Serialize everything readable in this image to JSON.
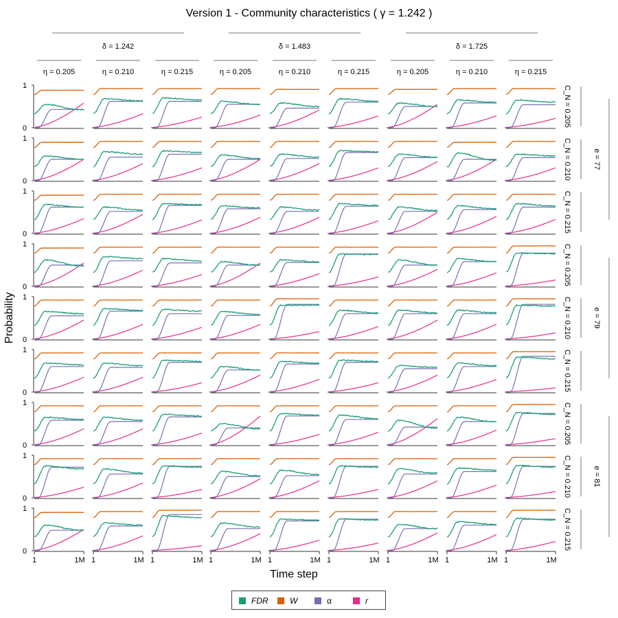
{
  "title": "Version 1 - Community characteristics ( γ = 1.242 )",
  "y_axis_label": "Probability",
  "x_axis_label": "Time step",
  "x_tick_labels": [
    "1",
    "1M"
  ],
  "y_tick_labels": [
    "0",
    "1"
  ],
  "colors": {
    "FDR": "#1b9e77",
    "W": "#d95f02",
    "alpha": "#7570b3",
    "r": "#e7298a"
  },
  "legend": [
    {
      "key": "FDR",
      "label": "FDR"
    },
    {
      "key": "W",
      "label": "W"
    },
    {
      "key": "alpha",
      "label": "α"
    },
    {
      "key": "r",
      "label": "r"
    }
  ],
  "column_groups": [
    {
      "label": "δ = 1.242",
      "subs": [
        "η = 0.205",
        "η = 0.210",
        "η = 0.215"
      ]
    },
    {
      "label": "δ = 1.483",
      "subs": [
        "η = 0.205",
        "η = 0.210",
        "η = 0.215"
      ]
    },
    {
      "label": "δ = 1.725",
      "subs": [
        "η = 0.205",
        "η = 0.210",
        "η = 0.215"
      ]
    }
  ],
  "row_groups": [
    {
      "label": "e = 77",
      "subs": [
        "C_N = 0.205",
        "C_N = 0.210",
        "C_N = 0.215"
      ]
    },
    {
      "label": "e = 79",
      "subs": [
        "C_N = 0.205",
        "C_N = 0.210",
        "C_N = 0.215"
      ]
    },
    {
      "label": "e = 81",
      "subs": [
        "C_N = 0.205",
        "C_N = 0.210",
        "C_N = 0.215"
      ]
    }
  ],
  "chart_data": {
    "type": "line",
    "title": "Version 1 - Community characteristics ( γ = 1.242 )",
    "xlabel": "Time step",
    "ylabel": "Probability",
    "xlim": [
      "1",
      "1M"
    ],
    "ylim": [
      0,
      1
    ],
    "x": [
      0,
      0.05,
      0.1,
      0.15,
      0.2,
      0.25,
      0.3,
      0.35,
      0.4,
      0.5,
      0.6,
      0.7,
      0.8,
      0.9,
      1.0
    ],
    "x_note": "x expressed as fraction of the log time axis from 1 to 1M",
    "panels": [
      {
        "row": 0,
        "col": 0,
        "W": 0.88,
        "FDR_peak": 0.55,
        "FDR_end": 0.42,
        "alpha_end": 0.43,
        "r_end": 0.58
      },
      {
        "row": 0,
        "col": 1,
        "W": 0.92,
        "FDR_peak": 0.68,
        "FDR_end": 0.63,
        "alpha_end": 0.62,
        "r_end": 0.33
      },
      {
        "row": 0,
        "col": 2,
        "W": 0.92,
        "FDR_peak": 0.7,
        "FDR_end": 0.65,
        "alpha_end": 0.62,
        "r_end": 0.25
      },
      {
        "row": 0,
        "col": 3,
        "W": 0.92,
        "FDR_peak": 0.62,
        "FDR_end": 0.55,
        "alpha_end": 0.55,
        "r_end": 0.3
      },
      {
        "row": 0,
        "col": 4,
        "W": 0.9,
        "FDR_peak": 0.58,
        "FDR_end": 0.5,
        "alpha_end": 0.46,
        "r_end": 0.42
      },
      {
        "row": 0,
        "col": 5,
        "W": 0.92,
        "FDR_peak": 0.68,
        "FDR_end": 0.62,
        "alpha_end": 0.6,
        "r_end": 0.28
      },
      {
        "row": 0,
        "col": 6,
        "W": 0.9,
        "FDR_peak": 0.58,
        "FDR_end": 0.5,
        "alpha_end": 0.5,
        "r_end": 0.55
      },
      {
        "row": 0,
        "col": 7,
        "W": 0.92,
        "FDR_peak": 0.65,
        "FDR_end": 0.6,
        "alpha_end": 0.58,
        "r_end": 0.28
      },
      {
        "row": 0,
        "col": 8,
        "W": 0.92,
        "FDR_peak": 0.65,
        "FDR_end": 0.6,
        "alpha_end": 0.54,
        "r_end": 0.22
      },
      {
        "row": 1,
        "col": 0,
        "W": 0.9,
        "FDR_peak": 0.58,
        "FDR_end": 0.5,
        "alpha_end": 0.5,
        "r_end": 0.5
      },
      {
        "row": 1,
        "col": 1,
        "W": 0.92,
        "FDR_peak": 0.68,
        "FDR_end": 0.62,
        "alpha_end": 0.55,
        "r_end": 0.4
      },
      {
        "row": 1,
        "col": 2,
        "W": 0.92,
        "FDR_peak": 0.7,
        "FDR_end": 0.66,
        "alpha_end": 0.62,
        "r_end": 0.3
      },
      {
        "row": 1,
        "col": 3,
        "W": 0.92,
        "FDR_peak": 0.6,
        "FDR_end": 0.52,
        "alpha_end": 0.5,
        "r_end": 0.5
      },
      {
        "row": 1,
        "col": 4,
        "W": 0.92,
        "FDR_peak": 0.62,
        "FDR_end": 0.55,
        "alpha_end": 0.52,
        "r_end": 0.4
      },
      {
        "row": 1,
        "col": 5,
        "W": 0.92,
        "FDR_peak": 0.7,
        "FDR_end": 0.68,
        "alpha_end": 0.66,
        "r_end": 0.3
      },
      {
        "row": 1,
        "col": 6,
        "W": 0.92,
        "FDR_peak": 0.62,
        "FDR_end": 0.55,
        "alpha_end": 0.54,
        "r_end": 0.45
      },
      {
        "row": 1,
        "col": 7,
        "W": 0.9,
        "FDR_peak": 0.65,
        "FDR_end": 0.48,
        "alpha_end": 0.5,
        "r_end": 0.5
      },
      {
        "row": 1,
        "col": 8,
        "W": 0.92,
        "FDR_peak": 0.62,
        "FDR_end": 0.58,
        "alpha_end": 0.54,
        "r_end": 0.3
      },
      {
        "row": 2,
        "col": 0,
        "W": 0.9,
        "FDR_peak": 0.68,
        "FDR_end": 0.62,
        "alpha_end": 0.62,
        "r_end": 0.35
      },
      {
        "row": 2,
        "col": 1,
        "W": 0.92,
        "FDR_peak": 0.62,
        "FDR_end": 0.55,
        "alpha_end": 0.52,
        "r_end": 0.45
      },
      {
        "row": 2,
        "col": 2,
        "W": 0.92,
        "FDR_peak": 0.7,
        "FDR_end": 0.68,
        "alpha_end": 0.66,
        "r_end": 0.32
      },
      {
        "row": 2,
        "col": 3,
        "W": 0.92,
        "FDR_peak": 0.65,
        "FDR_end": 0.6,
        "alpha_end": 0.58,
        "r_end": 0.38
      },
      {
        "row": 2,
        "col": 4,
        "W": 0.92,
        "FDR_peak": 0.62,
        "FDR_end": 0.55,
        "alpha_end": 0.52,
        "r_end": 0.38
      },
      {
        "row": 2,
        "col": 5,
        "W": 0.92,
        "FDR_peak": 0.7,
        "FDR_end": 0.66,
        "alpha_end": 0.64,
        "r_end": 0.3
      },
      {
        "row": 2,
        "col": 6,
        "W": 0.92,
        "FDR_peak": 0.62,
        "FDR_end": 0.54,
        "alpha_end": 0.52,
        "r_end": 0.5
      },
      {
        "row": 2,
        "col": 7,
        "W": 0.92,
        "FDR_peak": 0.65,
        "FDR_end": 0.58,
        "alpha_end": 0.56,
        "r_end": 0.4
      },
      {
        "row": 2,
        "col": 8,
        "W": 0.92,
        "FDR_peak": 0.7,
        "FDR_end": 0.65,
        "alpha_end": 0.62,
        "r_end": 0.33
      },
      {
        "row": 3,
        "col": 0,
        "W": 0.9,
        "FDR_peak": 0.62,
        "FDR_end": 0.48,
        "alpha_end": 0.5,
        "r_end": 0.55
      },
      {
        "row": 3,
        "col": 1,
        "W": 0.92,
        "FDR_peak": 0.7,
        "FDR_end": 0.65,
        "alpha_end": 0.6,
        "r_end": 0.38
      },
      {
        "row": 3,
        "col": 2,
        "W": 0.92,
        "FDR_peak": 0.65,
        "FDR_end": 0.6,
        "alpha_end": 0.55,
        "r_end": 0.28
      },
      {
        "row": 3,
        "col": 3,
        "W": 0.92,
        "FDR_peak": 0.58,
        "FDR_end": 0.5,
        "alpha_end": 0.5,
        "r_end": 0.55
      },
      {
        "row": 3,
        "col": 4,
        "W": 0.92,
        "FDR_peak": 0.62,
        "FDR_end": 0.58,
        "alpha_end": 0.56,
        "r_end": 0.3
      },
      {
        "row": 3,
        "col": 5,
        "W": 0.92,
        "FDR_peak": 0.76,
        "FDR_end": 0.75,
        "alpha_end": 0.76,
        "r_end": 0.22
      },
      {
        "row": 3,
        "col": 6,
        "W": 0.92,
        "FDR_peak": 0.62,
        "FDR_end": 0.5,
        "alpha_end": 0.5,
        "r_end": 0.4
      },
      {
        "row": 3,
        "col": 7,
        "W": 0.92,
        "FDR_peak": 0.65,
        "FDR_end": 0.58,
        "alpha_end": 0.58,
        "r_end": 0.32
      },
      {
        "row": 3,
        "col": 8,
        "W": 0.95,
        "FDR_peak": 0.78,
        "FDR_end": 0.77,
        "alpha_end": 0.78,
        "r_end": 0.15
      },
      {
        "row": 4,
        "col": 0,
        "W": 0.92,
        "FDR_peak": 0.65,
        "FDR_end": 0.6,
        "alpha_end": 0.55,
        "r_end": 0.45
      },
      {
        "row": 4,
        "col": 1,
        "W": 0.92,
        "FDR_peak": 0.72,
        "FDR_end": 0.68,
        "alpha_end": 0.66,
        "r_end": 0.35
      },
      {
        "row": 4,
        "col": 2,
        "W": 0.92,
        "FDR_peak": 0.7,
        "FDR_end": 0.66,
        "alpha_end": 0.6,
        "r_end": 0.28
      },
      {
        "row": 4,
        "col": 3,
        "W": 0.92,
        "FDR_peak": 0.65,
        "FDR_end": 0.58,
        "alpha_end": 0.56,
        "r_end": 0.35
      },
      {
        "row": 4,
        "col": 4,
        "W": 0.95,
        "FDR_peak": 0.8,
        "FDR_end": 0.8,
        "alpha_end": 0.82,
        "r_end": 0.18
      },
      {
        "row": 4,
        "col": 5,
        "W": 0.92,
        "FDR_peak": 0.68,
        "FDR_end": 0.62,
        "alpha_end": 0.6,
        "r_end": 0.3
      },
      {
        "row": 4,
        "col": 6,
        "W": 0.92,
        "FDR_peak": 0.68,
        "FDR_end": 0.62,
        "alpha_end": 0.6,
        "r_end": 0.45
      },
      {
        "row": 4,
        "col": 7,
        "W": 0.92,
        "FDR_peak": 0.68,
        "FDR_end": 0.62,
        "alpha_end": 0.6,
        "r_end": 0.35
      },
      {
        "row": 4,
        "col": 8,
        "W": 0.95,
        "FDR_peak": 0.8,
        "FDR_end": 0.78,
        "alpha_end": 0.82,
        "r_end": 0.15
      },
      {
        "row": 5,
        "col": 0,
        "W": 0.92,
        "FDR_peak": 0.68,
        "FDR_end": 0.64,
        "alpha_end": 0.6,
        "r_end": 0.35
      },
      {
        "row": 5,
        "col": 1,
        "W": 0.92,
        "FDR_peak": 0.68,
        "FDR_end": 0.62,
        "alpha_end": 0.58,
        "r_end": 0.35
      },
      {
        "row": 5,
        "col": 2,
        "W": 0.92,
        "FDR_peak": 0.75,
        "FDR_end": 0.72,
        "alpha_end": 0.7,
        "r_end": 0.22
      },
      {
        "row": 5,
        "col": 3,
        "W": 0.92,
        "FDR_peak": 0.6,
        "FDR_end": 0.52,
        "alpha_end": 0.52,
        "r_end": 0.4
      },
      {
        "row": 5,
        "col": 4,
        "W": 0.92,
        "FDR_peak": 0.72,
        "FDR_end": 0.68,
        "alpha_end": 0.66,
        "r_end": 0.3
      },
      {
        "row": 5,
        "col": 5,
        "W": 0.92,
        "FDR_peak": 0.75,
        "FDR_end": 0.72,
        "alpha_end": 0.7,
        "r_end": 0.22
      },
      {
        "row": 5,
        "col": 6,
        "W": 0.92,
        "FDR_peak": 0.62,
        "FDR_end": 0.58,
        "alpha_end": 0.55,
        "r_end": 0.4
      },
      {
        "row": 5,
        "col": 7,
        "W": 0.92,
        "FDR_peak": 0.68,
        "FDR_end": 0.62,
        "alpha_end": 0.6,
        "r_end": 0.3
      },
      {
        "row": 5,
        "col": 8,
        "W": 0.95,
        "FDR_peak": 0.82,
        "FDR_end": 0.78,
        "alpha_end": 0.84,
        "r_end": 0.1
      },
      {
        "row": 6,
        "col": 0,
        "W": 0.92,
        "FDR_peak": 0.65,
        "FDR_end": 0.6,
        "alpha_end": 0.58,
        "r_end": 0.38
      },
      {
        "row": 6,
        "col": 1,
        "W": 0.92,
        "FDR_peak": 0.65,
        "FDR_end": 0.58,
        "alpha_end": 0.55,
        "r_end": 0.38
      },
      {
        "row": 6,
        "col": 2,
        "W": 0.92,
        "FDR_peak": 0.72,
        "FDR_end": 0.68,
        "alpha_end": 0.66,
        "r_end": 0.28
      },
      {
        "row": 6,
        "col": 3,
        "W": 0.92,
        "FDR_peak": 0.5,
        "FDR_end": 0.38,
        "alpha_end": 0.4,
        "r_end": 0.68
      },
      {
        "row": 6,
        "col": 4,
        "W": 0.92,
        "FDR_peak": 0.74,
        "FDR_end": 0.7,
        "alpha_end": 0.68,
        "r_end": 0.25
      },
      {
        "row": 6,
        "col": 5,
        "W": 0.92,
        "FDR_peak": 0.7,
        "FDR_end": 0.62,
        "alpha_end": 0.6,
        "r_end": 0.3
      },
      {
        "row": 6,
        "col": 6,
        "W": 0.92,
        "FDR_peak": 0.58,
        "FDR_end": 0.4,
        "alpha_end": 0.42,
        "r_end": 0.62
      },
      {
        "row": 6,
        "col": 7,
        "W": 0.92,
        "FDR_peak": 0.65,
        "FDR_end": 0.55,
        "alpha_end": 0.55,
        "r_end": 0.35
      },
      {
        "row": 6,
        "col": 8,
        "W": 0.95,
        "FDR_peak": 0.76,
        "FDR_end": 0.72,
        "alpha_end": 0.74,
        "r_end": 0.15
      },
      {
        "row": 7,
        "col": 0,
        "W": 0.92,
        "FDR_peak": 0.75,
        "FDR_end": 0.68,
        "alpha_end": 0.72,
        "r_end": 0.25
      },
      {
        "row": 7,
        "col": 1,
        "W": 0.92,
        "FDR_peak": 0.68,
        "FDR_end": 0.58,
        "alpha_end": 0.56,
        "r_end": 0.35
      },
      {
        "row": 7,
        "col": 2,
        "W": 0.92,
        "FDR_peak": 0.75,
        "FDR_end": 0.72,
        "alpha_end": 0.74,
        "r_end": 0.2
      },
      {
        "row": 7,
        "col": 3,
        "W": 0.92,
        "FDR_peak": 0.62,
        "FDR_end": 0.52,
        "alpha_end": 0.5,
        "r_end": 0.45
      },
      {
        "row": 7,
        "col": 4,
        "W": 0.92,
        "FDR_peak": 0.65,
        "FDR_end": 0.55,
        "alpha_end": 0.52,
        "r_end": 0.4
      },
      {
        "row": 7,
        "col": 5,
        "W": 0.92,
        "FDR_peak": 0.75,
        "FDR_end": 0.72,
        "alpha_end": 0.74,
        "r_end": 0.2
      },
      {
        "row": 7,
        "col": 6,
        "W": 0.92,
        "FDR_peak": 0.68,
        "FDR_end": 0.58,
        "alpha_end": 0.56,
        "r_end": 0.4
      },
      {
        "row": 7,
        "col": 7,
        "W": 0.92,
        "FDR_peak": 0.7,
        "FDR_end": 0.65,
        "alpha_end": 0.62,
        "r_end": 0.3
      },
      {
        "row": 7,
        "col": 8,
        "W": 0.95,
        "FDR_peak": 0.76,
        "FDR_end": 0.72,
        "alpha_end": 0.74,
        "r_end": 0.15
      },
      {
        "row": 8,
        "col": 0,
        "W": 0.9,
        "FDR_peak": 0.6,
        "FDR_end": 0.48,
        "alpha_end": 0.48,
        "r_end": 0.5
      },
      {
        "row": 8,
        "col": 1,
        "W": 0.92,
        "FDR_peak": 0.65,
        "FDR_end": 0.6,
        "alpha_end": 0.58,
        "r_end": 0.35
      },
      {
        "row": 8,
        "col": 2,
        "W": 0.95,
        "FDR_peak": 0.82,
        "FDR_end": 0.78,
        "alpha_end": 0.85,
        "r_end": 0.12
      },
      {
        "row": 8,
        "col": 3,
        "W": 0.92,
        "FDR_peak": 0.65,
        "FDR_end": 0.56,
        "alpha_end": 0.52,
        "r_end": 0.4
      },
      {
        "row": 8,
        "col": 4,
        "W": 0.92,
        "FDR_peak": 0.74,
        "FDR_end": 0.72,
        "alpha_end": 0.7,
        "r_end": 0.25
      },
      {
        "row": 8,
        "col": 5,
        "W": 0.92,
        "FDR_peak": 0.75,
        "FDR_end": 0.72,
        "alpha_end": 0.74,
        "r_end": 0.18
      },
      {
        "row": 8,
        "col": 6,
        "W": 0.92,
        "FDR_peak": 0.62,
        "FDR_end": 0.52,
        "alpha_end": 0.52,
        "r_end": 0.42
      },
      {
        "row": 8,
        "col": 7,
        "W": 0.92,
        "FDR_peak": 0.68,
        "FDR_end": 0.62,
        "alpha_end": 0.6,
        "r_end": 0.38
      },
      {
        "row": 8,
        "col": 8,
        "W": 0.95,
        "FDR_peak": 0.76,
        "FDR_end": 0.72,
        "alpha_end": 0.74,
        "r_end": 0.22
      }
    ]
  }
}
